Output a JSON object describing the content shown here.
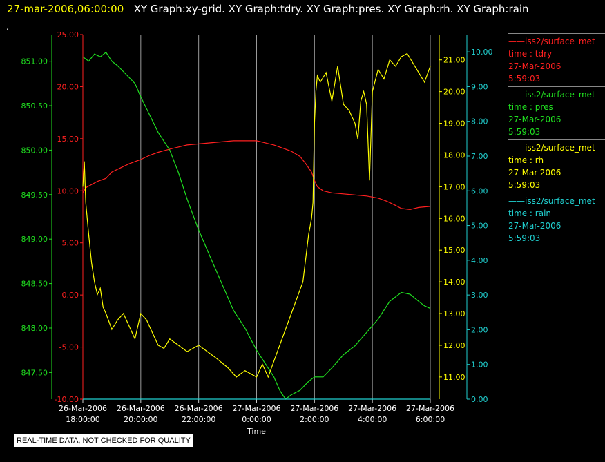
{
  "header": {
    "datetime": "27-mar-2006,06:00:00",
    "graphs": "XY Graph:xy-grid.  XY Graph:tdry.  XY Graph:pres.  XY Graph:rh.  XY Graph:rain",
    "dot": "."
  },
  "legend": [
    {
      "line1": "iss2/surface_met",
      "line2": "time : tdry",
      "line3": "27-Mar-2006",
      "line4": "5:59:03",
      "color": "#ff2020"
    },
    {
      "line1": "iss2/surface_met",
      "line2": "time : pres",
      "line3": "27-Mar-2006",
      "line4": "5:59:03",
      "color": "#20e020"
    },
    {
      "line1": "iss2/surface_met",
      "line2": "time : rh",
      "line3": "27-Mar-2006",
      "line4": "5:59:03",
      "color": "#ffff00"
    },
    {
      "line1": "iss2/surface_met",
      "line2": "time : rain",
      "line3": "27-Mar-2006",
      "line4": "5:59:03",
      "color": "#20d0d0"
    }
  ],
  "notice": "REAL-TIME DATA, NOT CHECKED FOR QUALITY",
  "chart_data": {
    "type": "line",
    "xlabel": "Time",
    "x_ticks": [
      {
        "hour": 0,
        "date": "26-Mar-2006",
        "time": "18:00:00"
      },
      {
        "hour": 2,
        "date": "26-Mar-2006",
        "time": "20:00:00"
      },
      {
        "hour": 4,
        "date": "26-Mar-2006",
        "time": "22:00:00"
      },
      {
        "hour": 6,
        "date": "27-Mar-2006",
        "time": "0:00:00"
      },
      {
        "hour": 8,
        "date": "27-Mar-2006",
        "time": "2:00:00"
      },
      {
        "hour": 10,
        "date": "27-Mar-2006",
        "time": "4:00:00"
      },
      {
        "hour": 12,
        "date": "27-Mar-2006",
        "time": "6:00:00"
      }
    ],
    "xlim": [
      0,
      12
    ],
    "grid": "vertical",
    "axes": {
      "tdry": {
        "color": "#ff2020",
        "lim": [
          -10,
          25
        ],
        "ticks": [
          "25.00",
          "20.00",
          "15.00",
          "10.00",
          "5.00",
          "0.00",
          "-5.00",
          "-10.00"
        ],
        "tick_values": [
          25,
          20,
          15,
          10,
          5,
          0,
          -5,
          -10
        ]
      },
      "pres": {
        "color": "#20e020",
        "lim": [
          847.2,
          851.3
        ],
        "ticks": [
          "851.00",
          "850.50",
          "850.00",
          "849.50",
          "849.00",
          "848.50",
          "848.00",
          "847.50"
        ],
        "tick_values": [
          851,
          850.5,
          850,
          849.5,
          849,
          848.5,
          848,
          847.5
        ]
      },
      "rh": {
        "color": "#ffff00",
        "lim": [
          10.3,
          21.8
        ],
        "ticks": [
          "21.00",
          "20.00",
          "19.00",
          "18.00",
          "17.00",
          "16.00",
          "15.00",
          "14.00",
          "13.00",
          "12.00",
          "11.00"
        ],
        "tick_values": [
          21,
          20,
          19,
          18,
          17,
          16,
          15,
          14,
          13,
          12,
          11
        ]
      },
      "rain": {
        "color": "#20d0d0",
        "lim": [
          0,
          10.5
        ],
        "ticks": [
          "10.00",
          "9.00",
          "8.00",
          "7.00",
          "6.00",
          "5.00",
          "4.00",
          "3.00",
          "2.00",
          "1.00",
          "0.00"
        ],
        "tick_values": [
          10,
          9,
          8,
          7,
          6,
          5,
          4,
          3,
          2,
          1,
          0
        ]
      }
    },
    "series": [
      {
        "key": "tdry",
        "name": "iss2/surface_met time : tdry",
        "x": [
          0,
          0.1,
          0.3,
          0.5,
          0.8,
          1,
          1.3,
          1.6,
          2,
          2.3,
          2.6,
          3,
          3.3,
          3.6,
          4,
          4.4,
          4.8,
          5.2,
          5.6,
          6,
          6.3,
          6.6,
          7,
          7.2,
          7.5,
          7.7,
          7.9,
          8,
          8.1,
          8.3,
          8.6,
          9,
          9.4,
          9.8,
          10.2,
          10.5,
          10.8,
          11,
          11.3,
          11.6,
          12
        ],
        "values": [
          9.8,
          10.3,
          10.6,
          10.9,
          11.2,
          11.8,
          12.2,
          12.6,
          13.0,
          13.4,
          13.7,
          14.0,
          14.2,
          14.4,
          14.5,
          14.6,
          14.7,
          14.8,
          14.8,
          14.8,
          14.6,
          14.4,
          14.0,
          13.8,
          13.3,
          12.6,
          11.8,
          11.0,
          10.4,
          10.0,
          9.8,
          9.7,
          9.6,
          9.5,
          9.3,
          9.0,
          8.6,
          8.3,
          8.2,
          8.4,
          8.5
        ]
      },
      {
        "key": "pres",
        "name": "iss2/surface_met time : pres",
        "x": [
          0,
          0.2,
          0.4,
          0.6,
          0.8,
          1,
          1.2,
          1.5,
          1.8,
          2,
          2.3,
          2.6,
          3,
          3.3,
          3.6,
          4,
          4.4,
          4.8,
          5.2,
          5.6,
          6,
          6.3,
          6.6,
          6.8,
          7,
          7.2,
          7.5,
          7.8,
          8,
          8.3,
          8.6,
          9,
          9.4,
          9.8,
          10.2,
          10.6,
          11,
          11.3,
          11.6,
          11.8,
          12
        ],
        "values": [
          851.05,
          851.0,
          851.08,
          851.05,
          851.1,
          851.0,
          850.95,
          850.85,
          850.75,
          850.6,
          850.4,
          850.2,
          850.0,
          849.75,
          849.45,
          849.1,
          848.8,
          848.5,
          848.2,
          848.0,
          847.75,
          847.6,
          847.45,
          847.3,
          847.2,
          847.25,
          847.3,
          847.4,
          847.45,
          847.45,
          847.55,
          847.7,
          847.8,
          847.95,
          848.1,
          848.3,
          848.4,
          848.38,
          848.3,
          848.25,
          848.22
        ]
      },
      {
        "key": "rh",
        "name": "iss2/surface_met time : rh",
        "x": [
          0,
          0.05,
          0.1,
          0.15,
          0.2,
          0.3,
          0.4,
          0.5,
          0.6,
          0.7,
          0.8,
          1,
          1.2,
          1.4,
          1.6,
          1.8,
          2,
          2.2,
          2.4,
          2.6,
          2.8,
          3,
          3.3,
          3.6,
          4,
          4.3,
          4.6,
          5,
          5.3,
          5.6,
          6,
          6.2,
          6.4,
          6.6,
          6.8,
          7,
          7.2,
          7.4,
          7.6,
          7.8,
          7.9,
          7.95,
          8,
          8.05,
          8.1,
          8.2,
          8.4,
          8.6,
          8.8,
          9,
          9.2,
          9.4,
          9.5,
          9.6,
          9.7,
          9.8,
          9.9,
          10,
          10.2,
          10.4,
          10.6,
          10.8,
          11,
          11.2,
          11.4,
          11.6,
          11.8,
          12
        ],
        "values": [
          17.0,
          17.8,
          16.5,
          16.0,
          15.5,
          14.6,
          14.0,
          13.6,
          13.8,
          13.2,
          13.0,
          12.5,
          12.8,
          13.0,
          12.6,
          12.2,
          13.0,
          12.8,
          12.4,
          12.0,
          11.9,
          12.2,
          12.0,
          11.8,
          12.0,
          11.8,
          11.6,
          11.3,
          11.0,
          11.2,
          11.0,
          11.4,
          11.0,
          11.5,
          12.0,
          12.5,
          13.0,
          13.5,
          14.0,
          15.5,
          16.0,
          16.5,
          19.0,
          20.0,
          20.5,
          20.3,
          20.6,
          19.7,
          20.8,
          19.6,
          19.4,
          19.0,
          18.5,
          19.7,
          20.0,
          19.6,
          17.2,
          20.0,
          20.7,
          20.4,
          21.0,
          20.8,
          21.1,
          21.2,
          20.9,
          20.6,
          20.3,
          20.8
        ]
      },
      {
        "key": "rain",
        "name": "iss2/surface_met time : rain",
        "x": [
          0,
          12
        ],
        "values": [
          0.0,
          0.0
        ]
      }
    ]
  }
}
